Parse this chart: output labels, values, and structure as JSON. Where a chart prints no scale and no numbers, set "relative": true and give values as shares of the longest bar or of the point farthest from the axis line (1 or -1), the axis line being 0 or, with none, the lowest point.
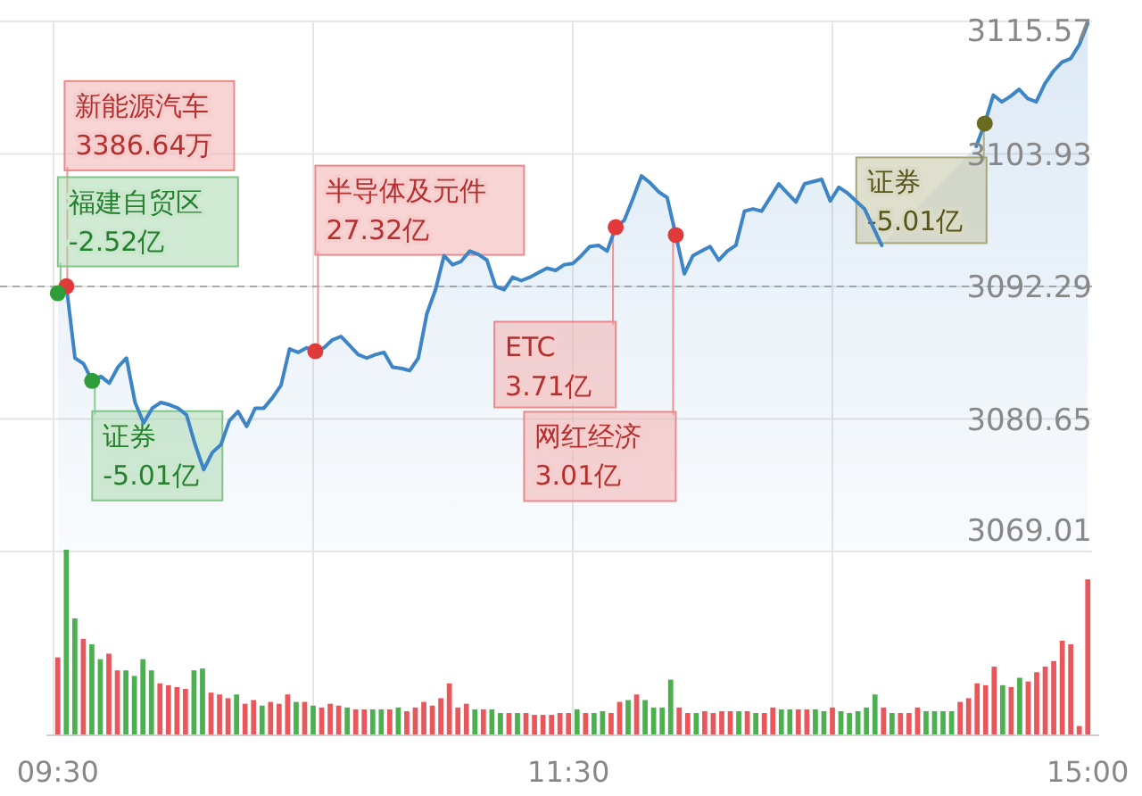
{
  "chart_data": [
    {
      "type": "area",
      "categories": [
        null,
        null,
        null,
        null,
        null,
        null,
        null,
        null,
        null,
        null,
        null,
        null,
        null,
        null,
        null,
        null,
        null,
        null,
        null,
        null,
        null,
        null,
        null,
        null,
        null,
        null,
        null,
        null,
        null,
        null,
        null,
        null,
        null,
        null,
        null,
        null,
        null,
        null,
        null,
        null,
        null,
        null,
        null,
        null,
        null,
        null,
        null,
        null,
        null,
        null,
        null,
        null,
        null,
        null,
        null,
        null,
        null,
        null,
        null,
        null,
        null,
        null,
        null,
        null,
        null,
        null,
        null,
        null,
        null,
        null,
        null,
        null,
        null,
        null,
        null,
        null,
        null,
        null,
        null,
        null,
        null,
        null,
        null,
        null,
        null,
        null,
        null,
        null,
        null,
        null,
        null,
        null,
        null,
        null,
        null,
        null,
        null,
        null,
        null,
        null,
        null,
        null,
        null,
        null,
        null,
        null,
        null,
        null,
        null,
        null,
        null,
        null,
        null,
        null,
        null,
        null,
        null,
        null,
        null,
        null,
        null
      ],
      "tick_labels": "y",
      "ylim": [
        3069.01,
        3115.57
      ],
      "yticks": [
        3069.01,
        3080.65,
        3092.29,
        3103.93,
        3115.57
      ],
      "grid": true,
      "ref_lines": [
        {
          "axis": "y",
          "value": 3092.29,
          "color": "#aaaaaa",
          "line_style": "dashed"
        }
      ],
      "series": [
        {
          "type": "area",
          "color": "#3d85c6",
          "values": [
            3091.7,
            3092.3,
            3086.0,
            3085.5,
            3084.0,
            3084.4,
            3083.8,
            3085.2,
            3086.0,
            3082.1,
            3080.3,
            3081.6,
            3082.1,
            3081.9,
            3081.6,
            3081.0,
            3078.4,
            3076.2,
            3077.7,
            3078.4,
            3080.5,
            3081.3,
            3080.0,
            3081.6,
            3081.6,
            3082.5,
            3083.6,
            3086.8,
            3086.5,
            3086.9,
            3086.6,
            3086.9,
            3087.6,
            3087.9,
            3087.1,
            3086.3,
            3086.0,
            3086.3,
            3086.5,
            3085.2,
            3085.1,
            3084.9,
            3086.0,
            3089.9,
            3092.0,
            3095.0,
            3094.2,
            3094.5,
            3095.4,
            3095.1,
            3094.6,
            3092.3,
            3092.0,
            3093.1,
            3092.8,
            3093.1,
            3093.5,
            3093.9,
            3093.7,
            3094.2,
            3094.3,
            3095.0,
            3095.8,
            3095.9,
            3095.4,
            3097.5,
            3098.1,
            3100.0,
            3102.0,
            3101.4,
            3100.6,
            3100.1,
            3096.8,
            3093.4,
            3095.0,
            3095.4,
            3095.8,
            3094.6,
            3095.4,
            3095.9,
            3098.9,
            3099.1,
            3098.9,
            3100.1,
            3101.3,
            3100.5,
            3099.7,
            3101.3,
            3101.5,
            3101.7,
            3099.8,
            3101.0,
            3100.5,
            3099.8,
            3099.1,
            3097.5,
            3095.9,
            null,
            null,
            null,
            null,
            null,
            null,
            null,
            null,
            null,
            null,
            3104.6,
            3106.6,
            3109.1,
            3108.5,
            3109.0,
            3109.6,
            3108.8,
            3108.5,
            3110.1,
            3111.2,
            3112.0,
            3112.3,
            3113.5,
            3115.4
          ]
        },
        {
          "type": "scatter",
          "color": "#e03a3a",
          "marker": "circle",
          "values": [
            null,
            3092.3,
            null,
            null,
            null,
            null,
            null,
            null,
            null,
            null,
            null,
            null,
            null,
            null,
            null,
            null,
            null,
            null,
            null,
            null,
            null,
            null,
            null,
            null,
            null,
            null,
            null,
            null,
            null,
            null,
            3086.6,
            null,
            null,
            null,
            null,
            null,
            null,
            null,
            null,
            null,
            null,
            null,
            null,
            null,
            null,
            null,
            null,
            null,
            null,
            null,
            null,
            null,
            null,
            null,
            null,
            null,
            null,
            null,
            null,
            null,
            null,
            null,
            null,
            null,
            null,
            3097.5,
            null,
            null,
            null,
            null,
            null,
            null,
            3096.8,
            null,
            null,
            null,
            null,
            null,
            null,
            null,
            null,
            null,
            null,
            null,
            null,
            null,
            null,
            null,
            null,
            null,
            null,
            null,
            null,
            null,
            null,
            null,
            null,
            null,
            null,
            null,
            null,
            null,
            null,
            null,
            null,
            null,
            null,
            null,
            null,
            null,
            null,
            null,
            null,
            null,
            null,
            null,
            null,
            null,
            null,
            null,
            null
          ]
        },
        {
          "type": "scatter",
          "color": "#2e9e3a",
          "marker": "circle",
          "values": [
            3091.7,
            null,
            null,
            null,
            3084.0,
            null,
            null,
            null,
            null,
            null,
            null,
            null,
            null,
            null,
            null,
            null,
            null,
            null,
            null,
            null,
            null,
            null,
            null,
            null,
            null,
            null,
            null,
            null,
            null,
            null,
            null,
            null,
            null,
            null,
            null,
            null,
            null,
            null,
            null,
            null,
            null,
            null,
            null,
            null,
            null,
            null,
            null,
            null,
            null,
            null,
            null,
            null,
            null,
            null,
            null,
            null,
            null,
            null,
            null,
            null,
            null,
            null,
            null,
            null,
            null,
            null,
            null,
            null,
            null,
            null,
            null,
            null,
            null,
            null,
            null,
            null,
            null,
            null,
            null,
            null,
            null,
            null,
            null,
            null,
            null,
            null,
            null,
            null,
            null,
            null,
            null,
            null,
            null,
            null,
            null,
            null,
            null,
            null,
            null,
            null,
            null,
            null,
            null,
            null,
            null,
            null,
            null,
            null,
            null,
            null,
            null,
            null,
            null,
            null,
            null,
            null,
            null,
            null,
            null,
            null,
            null
          ]
        },
        {
          "type": "scatter",
          "color": "#6b6b20",
          "marker": "circle",
          "values": [
            null,
            null,
            null,
            null,
            null,
            null,
            null,
            null,
            null,
            null,
            null,
            null,
            null,
            null,
            null,
            null,
            null,
            null,
            null,
            null,
            null,
            null,
            null,
            null,
            null,
            null,
            null,
            null,
            null,
            null,
            null,
            null,
            null,
            null,
            null,
            null,
            null,
            null,
            null,
            null,
            null,
            null,
            null,
            null,
            null,
            null,
            null,
            null,
            null,
            null,
            null,
            null,
            null,
            null,
            null,
            null,
            null,
            null,
            null,
            null,
            null,
            null,
            null,
            null,
            null,
            null,
            null,
            null,
            null,
            null,
            null,
            null,
            null,
            null,
            null,
            null,
            null,
            null,
            null,
            null,
            null,
            null,
            null,
            null,
            null,
            null,
            null,
            null,
            null,
            null,
            null,
            null,
            null,
            null,
            null,
            null,
            null,
            null,
            null,
            null,
            null,
            null,
            null,
            null,
            null,
            null,
            null,
            null,
            3106.6,
            null,
            null,
            null,
            null,
            null,
            null,
            null,
            null,
            null,
            null,
            null,
            null
          ]
        }
      ],
      "annotations": [
        "新能源汽车\n3386.64万",
        "福建自贸区\n-2.52亿",
        "证券\n-5.01亿",
        "半导体及元件\n27.32亿",
        "ETC\n3.71亿",
        "网红经济\n3.01亿",
        "证券\n-5.01亿"
      ]
    },
    {
      "type": "bar",
      "relative": true,
      "categories": [
        "09:30",
        null,
        null,
        null,
        null,
        null,
        null,
        null,
        null,
        null,
        null,
        null,
        null,
        null,
        null,
        null,
        null,
        null,
        null,
        null,
        null,
        null,
        null,
        null,
        null,
        null,
        null,
        null,
        null,
        null,
        null,
        null,
        null,
        null,
        null,
        null,
        null,
        null,
        null,
        null,
        null,
        null,
        null,
        null,
        null,
        null,
        null,
        null,
        null,
        null,
        null,
        null,
        null,
        null,
        null,
        null,
        null,
        null,
        null,
        null,
        "11:30",
        null,
        null,
        null,
        null,
        null,
        null,
        null,
        null,
        null,
        null,
        null,
        null,
        null,
        null,
        null,
        null,
        null,
        null,
        null,
        null,
        null,
        null,
        null,
        null,
        null,
        null,
        null,
        null,
        null,
        null,
        null,
        null,
        null,
        null,
        null,
        null,
        null,
        null,
        null,
        null,
        null,
        null,
        null,
        null,
        null,
        null,
        null,
        null,
        null,
        null,
        null,
        null,
        null,
        null,
        null,
        null,
        null,
        null,
        null,
        null,
        "15:00"
      ],
      "tick_labels": "x",
      "grid": "x",
      "values": [
        0.42,
        1.0,
        0.63,
        0.52,
        0.49,
        0.41,
        0.44,
        0.35,
        0.35,
        0.32,
        0.41,
        0.35,
        0.28,
        0.27,
        0.26,
        0.25,
        0.35,
        0.36,
        0.23,
        0.22,
        0.2,
        0.22,
        0.17,
        0.19,
        0.16,
        0.18,
        0.17,
        0.22,
        0.18,
        0.18,
        0.16,
        0.15,
        0.17,
        0.16,
        0.15,
        0.14,
        0.14,
        0.14,
        0.14,
        0.14,
        0.15,
        0.13,
        0.15,
        0.18,
        0.16,
        0.2,
        0.28,
        0.15,
        0.17,
        0.14,
        0.14,
        0.14,
        0.12,
        0.12,
        0.12,
        0.12,
        0.11,
        0.11,
        0.11,
        0.12,
        0.12,
        0.14,
        0.12,
        0.12,
        0.13,
        0.12,
        0.18,
        0.19,
        0.22,
        0.19,
        0.15,
        0.15,
        0.3,
        0.15,
        0.12,
        0.12,
        0.13,
        0.12,
        0.13,
        0.13,
        0.13,
        0.13,
        0.12,
        0.12,
        0.15,
        0.14,
        0.14,
        0.14,
        0.14,
        0.14,
        0.13,
        0.15,
        0.13,
        0.12,
        0.13,
        0.15,
        0.22,
        0.15,
        0.12,
        0.12,
        0.12,
        0.15,
        0.13,
        0.13,
        0.13,
        0.13,
        0.18,
        0.2,
        0.28,
        0.27,
        0.37,
        0.27,
        0.26,
        0.31,
        0.29,
        0.34,
        0.37,
        0.4,
        0.51,
        0.49,
        0.05,
        0.84
      ],
      "colors": [
        "#e8575c",
        "#4caf50",
        "#4caf50",
        "#e8575c",
        "#4caf50",
        "#4caf50",
        "#e8575c",
        "#e8575c",
        "#4caf50",
        "#4caf50",
        "#4caf50",
        "#4caf50",
        "#e8575c",
        "#e8575c",
        "#e8575c",
        "#e8575c",
        "#4caf50",
        "#4caf50",
        "#e8575c",
        "#e8575c",
        "#e8575c",
        "#4caf50",
        "#e8575c",
        "#e8575c",
        "#4caf50",
        "#e8575c",
        "#e8575c",
        "#e8575c",
        "#4caf50",
        "#e8575c",
        "#4caf50",
        "#e8575c",
        "#e8575c",
        "#e8575c",
        "#4caf50",
        "#e8575c",
        "#e8575c",
        "#4caf50",
        "#4caf50",
        "#e8575c",
        "#4caf50",
        "#e8575c",
        "#e8575c",
        "#e8575c",
        "#e8575c",
        "#e8575c",
        "#e8575c",
        "#e8575c",
        "#e8575c",
        "#4caf50",
        "#e8575c",
        "#4caf50",
        "#4caf50",
        "#e8575c",
        "#4caf50",
        "#e8575c",
        "#e8575c",
        "#e8575c",
        "#e8575c",
        "#e8575c",
        "#e8575c",
        "#4caf50",
        "#e8575c",
        "#4caf50",
        "#4caf50",
        "#e8575c",
        "#e8575c",
        "#4caf50",
        "#e8575c",
        "#4caf50",
        "#4caf50",
        "#4caf50",
        "#4caf50",
        "#e8575c",
        "#e8575c",
        "#4caf50",
        "#e8575c",
        "#e8575c",
        "#e8575c",
        "#e8575c",
        "#4caf50",
        "#e8575c",
        "#4caf50",
        "#e8575c",
        "#e8575c",
        "#4caf50",
        "#4caf50",
        "#e8575c",
        "#e8575c",
        "#4caf50",
        "#4caf50",
        "#e8575c",
        "#4caf50",
        "#4caf50",
        "#4caf50",
        "#4caf50",
        "#4caf50",
        "#e8575c",
        "#4caf50",
        "#e8575c",
        "#e8575c",
        "#e8575c",
        "#4caf50",
        "#4caf50",
        "#4caf50",
        "#4caf50",
        "#e8575c",
        "#e8575c",
        "#e8575c",
        "#e8575c",
        "#e8575c",
        "#4caf50",
        "#e8575c",
        "#4caf50",
        "#e8575c",
        "#e8575c",
        "#e8575c",
        "#e8575c",
        "#e8575c",
        "#e8575c",
        "#e8575c",
        "#e8575c"
      ]
    }
  ]
}
